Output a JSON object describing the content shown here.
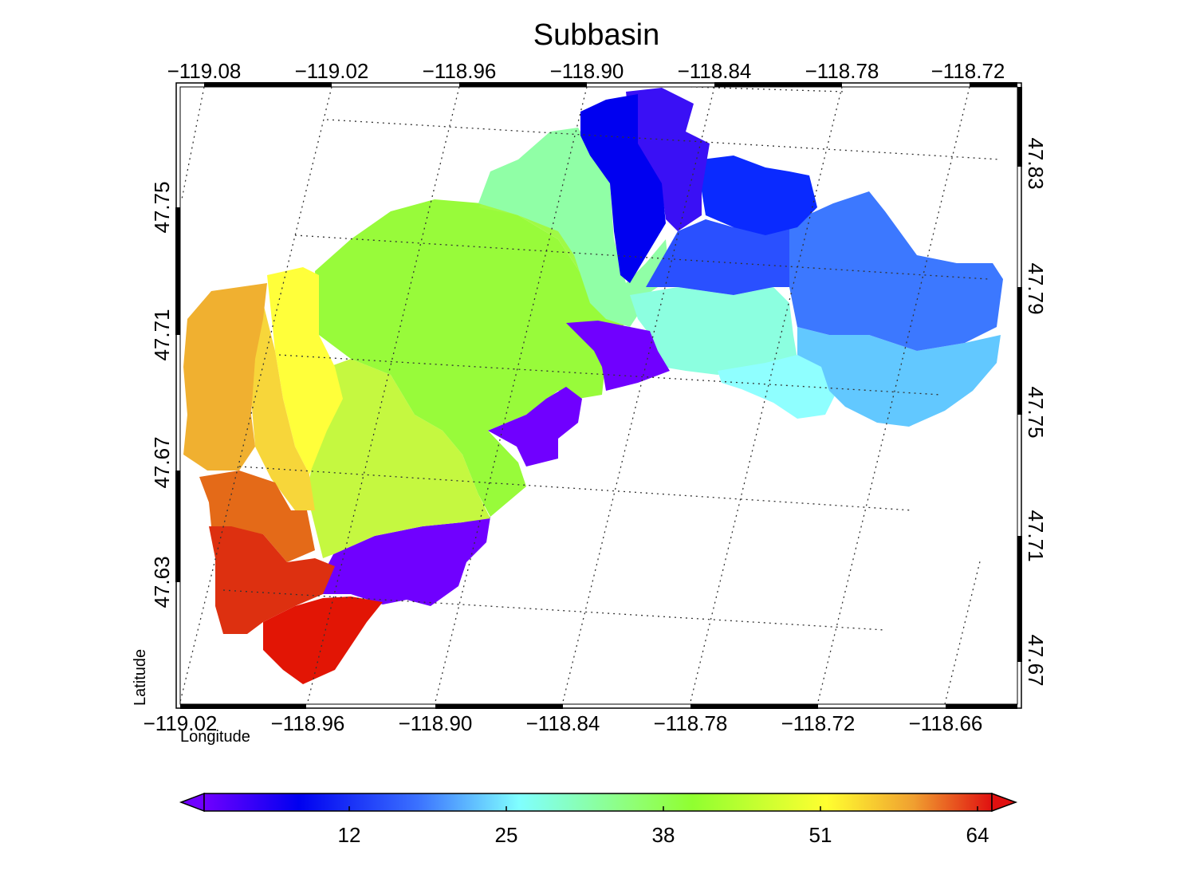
{
  "title": "Subbasin",
  "axes": {
    "bottom_label": "Longitude",
    "left_label": "Latitude",
    "bottom_ticks": [
      "−119.02",
      "−118.96",
      "−118.90",
      "−118.84",
      "−118.78",
      "−118.72",
      "−118.66"
    ],
    "top_ticks": [
      "−119.08",
      "−119.02",
      "−118.96",
      "−118.90",
      "−118.84",
      "−118.78",
      "−118.72"
    ],
    "left_ticks": [
      "47.75",
      "47.71",
      "47.67",
      "47.63"
    ],
    "right_ticks": [
      "47.83",
      "47.79",
      "47.75",
      "47.71",
      "47.67"
    ]
  },
  "colorbar": {
    "min": 0,
    "max": 64,
    "ticks": [
      "12",
      "25",
      "38",
      "51",
      "64"
    ],
    "colors": [
      "#7000ff",
      "#0000f0",
      "#3a70ff",
      "#80ffff",
      "#90ff70",
      "#90ff30",
      "#ffff30",
      "#f0a030",
      "#e01010"
    ]
  },
  "map_regions": [
    {
      "name": "subbasin-red-south",
      "value": 64
    },
    {
      "name": "subbasin-red-west",
      "value": 62
    },
    {
      "name": "subbasin-orange-red",
      "value": 58
    },
    {
      "name": "subbasin-orange-west",
      "value": 55
    },
    {
      "name": "subbasin-yellow-orange",
      "value": 52
    },
    {
      "name": "subbasin-yellow",
      "value": 50
    },
    {
      "name": "subbasin-yellow-green",
      "value": 44
    },
    {
      "name": "subbasin-green-central",
      "value": 39
    },
    {
      "name": "subbasin-green-east",
      "value": 36
    },
    {
      "name": "subbasin-aqua-green",
      "value": 30
    },
    {
      "name": "subbasin-aqua",
      "value": 27
    },
    {
      "name": "subbasin-cyan",
      "value": 25
    },
    {
      "name": "subbasin-lightblue-east",
      "value": 20
    },
    {
      "name": "subbasin-blue-mid",
      "value": 16
    },
    {
      "name": "subbasin-blue-north",
      "value": 8
    },
    {
      "name": "subbasin-violet-north",
      "value": 3
    },
    {
      "name": "subbasin-violet-a",
      "value": 1
    },
    {
      "name": "subbasin-violet-b",
      "value": 1
    },
    {
      "name": "subbasin-violet-c",
      "value": 1
    }
  ]
}
